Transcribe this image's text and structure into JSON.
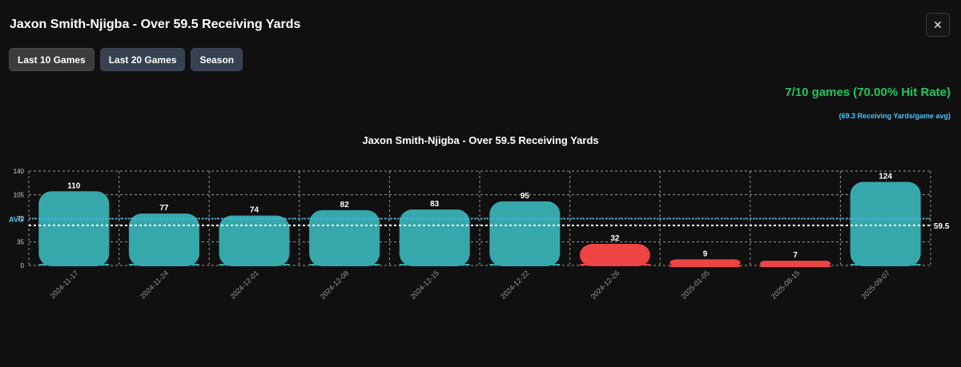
{
  "header": {
    "title": "Jaxon Smith-Njigba - Over 59.5 Receiving Yards"
  },
  "close": {
    "icon": "close-icon",
    "glyph": "✕"
  },
  "tabs": [
    {
      "label": "Last 10 Games",
      "active": true
    },
    {
      "label": "Last 20 Games",
      "active": false
    },
    {
      "label": "Season",
      "active": false
    }
  ],
  "summary": {
    "hit_rate": "7/10 games (70.00% Hit Rate)",
    "average": "(69.3 Receiving Yards/game avg)"
  },
  "colors": {
    "hit": "#36a8ab",
    "miss": "#ef4444",
    "avg_line": "#4fc3f7",
    "line_color": "#ffffff",
    "grid": "#cfcfcf",
    "hit_rate_text": "#22c55e"
  },
  "chart_data": {
    "type": "bar",
    "title": "Jaxon Smith-Njigba - Over 59.5 Receiving Yards",
    "categories": [
      "2024-11-17",
      "2024-11-24",
      "2024-12-01",
      "2024-12-08",
      "2024-12-15",
      "2024-12-22",
      "2024-12-26",
      "2025-01-05",
      "2025-08-15",
      "2025-09-07"
    ],
    "values": [
      110,
      77,
      74,
      82,
      83,
      95,
      32,
      9,
      7,
      124
    ],
    "line": 59.5,
    "line_label": "59.5",
    "average": 69.3,
    "average_label": "AVG",
    "ylim": [
      0,
      140
    ],
    "yticks": [
      0,
      35,
      70,
      105,
      140
    ],
    "grid": true,
    "legend": "none"
  }
}
